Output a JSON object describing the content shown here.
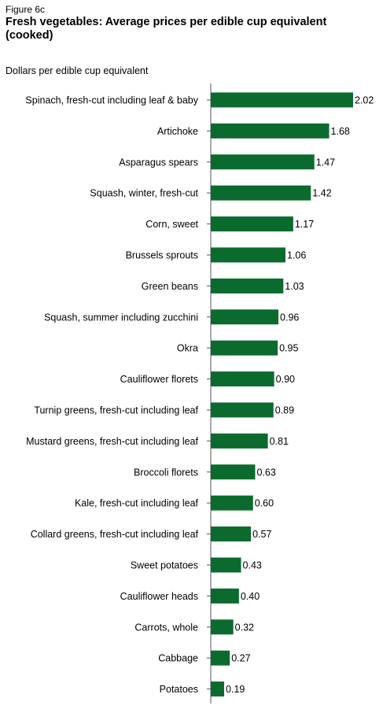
{
  "figure_label": "Figure 6c",
  "chart_data": {
    "type": "bar",
    "orientation": "horizontal",
    "title": "Fresh vegetables: Average prices per edible cup equivalent (cooked)",
    "ylabel": "Dollars per edible cup equivalent",
    "xlim": [
      0,
      2.02
    ],
    "grid": false,
    "bar_color": "#0b6b2e",
    "categories": [
      "Spinach, fresh-cut including leaf & baby",
      "Artichoke",
      "Asparagus spears",
      "Squash, winter, fresh-cut",
      "Corn, sweet",
      "Brussels sprouts",
      "Green beans",
      "Squash, summer including zucchini",
      "Okra",
      "Cauliflower florets",
      "Turnip greens, fresh-cut including leaf",
      "Mustard greens, fresh-cut including leaf",
      "Broccoli florets",
      "Kale, fresh-cut including leaf",
      "Collard greens, fresh-cut including leaf",
      "Sweet potatoes",
      "Cauliflower heads",
      "Carrots, whole",
      "Cabbage",
      "Potatoes"
    ],
    "values": [
      2.02,
      1.68,
      1.47,
      1.42,
      1.17,
      1.06,
      1.03,
      0.96,
      0.95,
      0.9,
      0.89,
      0.81,
      0.63,
      0.6,
      0.57,
      0.43,
      0.4,
      0.32,
      0.27,
      0.19
    ],
    "value_labels": [
      "2.02",
      "1.68",
      "1.47",
      "1.42",
      "1.17",
      "1.06",
      "1.03",
      "0.96",
      "0.95",
      "0.90",
      "0.89",
      "0.81",
      "0.63",
      "0.60",
      "0.57",
      "0.43",
      "0.40",
      "0.32",
      "0.27",
      "0.19"
    ]
  }
}
